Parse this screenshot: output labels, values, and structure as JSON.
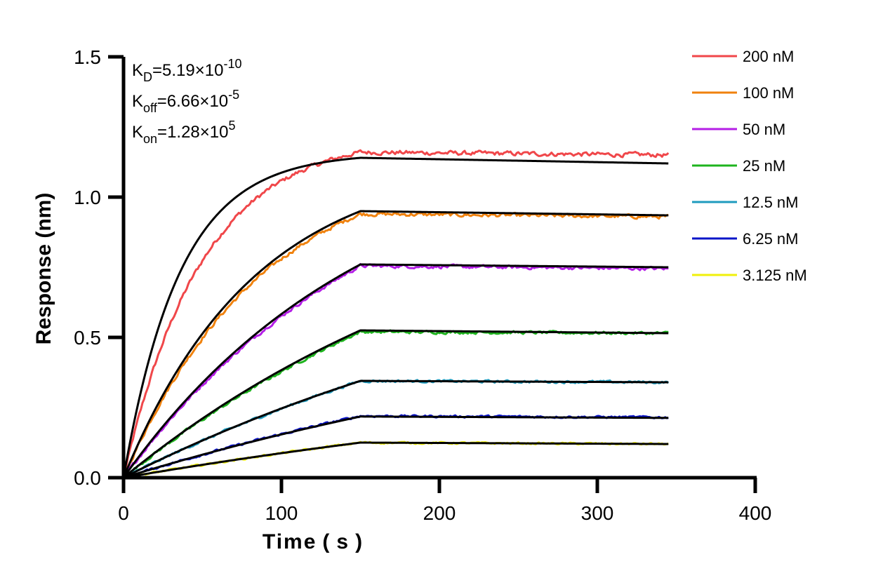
{
  "chart_data": {
    "type": "line",
    "title": "",
    "xlabel": "Time ( s )",
    "ylabel": "Response (nm)",
    "xlim": [
      0,
      400
    ],
    "ylim": [
      0,
      1.5
    ],
    "x_ticks": [
      "0",
      "100",
      "200",
      "300",
      "400"
    ],
    "y_ticks": [
      "0.0",
      "0.5",
      "1.0",
      "1.5"
    ],
    "grid": false,
    "legend_position": "top-right",
    "constants": [
      {
        "base": "K",
        "sub": "D",
        "text": "=5.19×10",
        "sup": "-10"
      },
      {
        "base": "K",
        "sub": "off",
        "text": "=6.66×10",
        "sup": "-5"
      },
      {
        "base": "K",
        "sub": "on",
        "text": "=1.28×10",
        "sup": "5"
      }
    ],
    "association_end": 150,
    "dissociation_end": 345,
    "series": [
      {
        "name": "200 nM",
        "color": "#f0474a",
        "plateau": 1.16,
        "end": 1.15
      },
      {
        "name": "100 nM",
        "color": "#f0820e",
        "plateau": 0.94,
        "end": 0.93
      },
      {
        "name": "50 nM",
        "color": "#b41ee6",
        "plateau": 0.755,
        "end": 0.745
      },
      {
        "name": "25 nM",
        "color": "#1eb41e",
        "plateau": 0.52,
        "end": 0.515
      },
      {
        "name": "12.5 nM",
        "color": "#1e9bbe",
        "plateau": 0.345,
        "end": 0.34
      },
      {
        "name": "6.25 nM",
        "color": "#0a14c8",
        "plateau": 0.22,
        "end": 0.215
      },
      {
        "name": "3.125 nM",
        "color": "#f0f00a",
        "plateau": 0.125,
        "end": 0.12
      }
    ],
    "fits": [
      {
        "plateau": 1.14,
        "end": 1.12,
        "rate": 0.028
      },
      {
        "plateau": 0.95,
        "end": 0.935,
        "rate": 0.012
      },
      {
        "plateau": 0.76,
        "end": 0.75,
        "rate": 0.0065
      },
      {
        "plateau": 0.525,
        "end": 0.515,
        "rate": 0.004
      },
      {
        "plateau": 0.345,
        "end": 0.34,
        "rate": 0.003
      },
      {
        "plateau": 0.218,
        "end": 0.213,
        "rate": 0.0025
      },
      {
        "plateau": 0.125,
        "end": 0.12,
        "rate": 0.002
      }
    ],
    "fit_color": "#000000"
  }
}
